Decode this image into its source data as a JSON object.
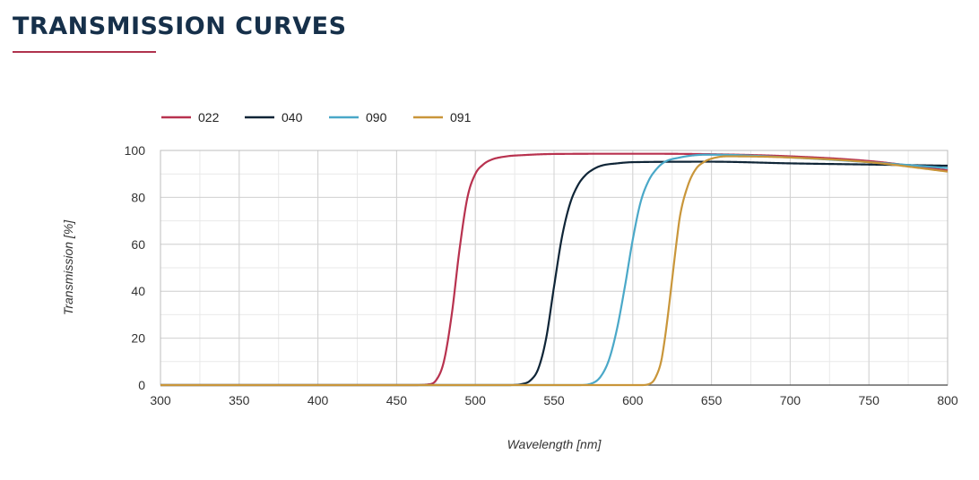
{
  "page": {
    "title": "TRANSMISSION CURVES"
  },
  "chart_data": {
    "type": "line",
    "title": "TRANSMISSION CURVES",
    "xlabel": "Wavelength [nm]",
    "ylabel": "Transmission [%]",
    "xlim": [
      300,
      800
    ],
    "ylim": [
      0,
      100
    ],
    "xticks": [
      300,
      350,
      400,
      450,
      500,
      550,
      600,
      650,
      700,
      750,
      800
    ],
    "yticks": [
      0,
      20,
      40,
      60,
      80,
      100
    ],
    "grid": true,
    "legend_position": "top-left",
    "series": [
      {
        "name": "022",
        "color": "#b8324f",
        "x": [
          300,
          460,
          470,
          475,
          480,
          485,
          490,
          495,
          500,
          505,
          510,
          520,
          530,
          550,
          600,
          650,
          700,
          750,
          800
        ],
        "y": [
          0,
          0,
          0.3,
          2,
          10,
          30,
          58,
          80,
          90,
          94,
          96,
          97.5,
          98,
          98.5,
          98.6,
          98.4,
          97.5,
          95.5,
          91.5
        ]
      },
      {
        "name": "040",
        "color": "#0f2537",
        "x": [
          300,
          520,
          530,
          535,
          540,
          545,
          550,
          555,
          560,
          565,
          570,
          575,
          580,
          590,
          600,
          650,
          700,
          750,
          800
        ],
        "y": [
          0,
          0,
          0.5,
          2,
          7,
          20,
          42,
          63,
          77,
          85,
          89.5,
          92,
          93.5,
          94.5,
          95,
          95.2,
          94.5,
          94,
          93.5
        ]
      },
      {
        "name": "090",
        "color": "#4aa8c8",
        "x": [
          300,
          565,
          575,
          580,
          585,
          590,
          595,
          600,
          605,
          610,
          615,
          620,
          630,
          640,
          650,
          700,
          750,
          800
        ],
        "y": [
          0,
          0,
          1,
          4,
          11,
          24,
          42,
          62,
          78,
          87,
          92,
          95,
          97,
          98,
          98.2,
          97,
          95,
          92.5
        ]
      },
      {
        "name": "091",
        "color": "#c9963a",
        "x": [
          300,
          605,
          612,
          615,
          618,
          620,
          622,
          625,
          628,
          630,
          635,
          640,
          645,
          650,
          660,
          700,
          750,
          800
        ],
        "y": [
          0,
          0,
          1,
          4,
          10,
          18,
          28,
          45,
          62,
          72,
          85,
          92,
          95,
          96.5,
          97.5,
          97,
          95,
          91
        ]
      }
    ]
  }
}
